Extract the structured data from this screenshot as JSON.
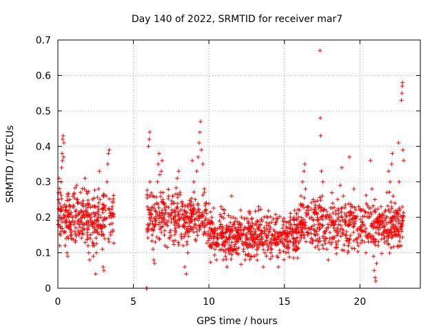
{
  "chart_data": {
    "type": "scatter",
    "title": "Day 140 of 2022, SRMTID for receiver mar7",
    "xlabel": "GPS time / hours",
    "ylabel": "SRMTID / TECUs",
    "xlim": [
      0,
      24
    ],
    "ylim": [
      0,
      0.7
    ],
    "xticks": [
      0,
      5,
      10,
      15,
      20
    ],
    "yticks": [
      0,
      0.1,
      0.2,
      0.3,
      0.4,
      0.5,
      0.6,
      0.7
    ],
    "ytick_labels": [
      "0",
      "0.1",
      "0.2",
      "0.3",
      "0.4",
      "0.5",
      "0.6",
      "0.7"
    ],
    "grid": true,
    "marker": "+",
    "color": "#ff0000",
    "series": [
      {
        "name": "mar7",
        "points": [
          [
            0.05,
            0.18
          ],
          [
            0.08,
            0.31
          ],
          [
            0.1,
            0.24
          ],
          [
            0.12,
            0.12
          ],
          [
            0.15,
            0.27
          ],
          [
            0.18,
            0.15
          ],
          [
            0.2,
            0.22
          ],
          [
            0.22,
            0.3
          ],
          [
            0.25,
            0.34
          ],
          [
            0.28,
            0.38
          ],
          [
            0.3,
            0.36
          ],
          [
            0.32,
            0.42
          ],
          [
            0.35,
            0.43
          ],
          [
            0.38,
            0.37
          ],
          [
            0.4,
            0.41
          ],
          [
            0.42,
            0.2
          ],
          [
            0.45,
            0.16
          ],
          [
            0.48,
            0.12
          ],
          [
            0.5,
            0.19
          ],
          [
            0.55,
            0.14
          ],
          [
            0.6,
            0.1
          ],
          [
            0.65,
            0.09
          ],
          [
            0.7,
            0.17
          ],
          [
            0.75,
            0.21
          ],
          [
            0.8,
            0.25
          ],
          [
            0.85,
            0.18
          ],
          [
            0.9,
            0.14
          ],
          [
            0.95,
            0.2
          ],
          [
            1.0,
            0.26
          ],
          [
            1.05,
            0.23
          ],
          [
            1.1,
            0.16
          ],
          [
            1.15,
            0.13
          ],
          [
            1.2,
            0.22
          ],
          [
            1.25,
            0.29
          ],
          [
            1.3,
            0.24
          ],
          [
            1.35,
            0.19
          ],
          [
            1.4,
            0.15
          ],
          [
            1.45,
            0.21
          ],
          [
            1.5,
            0.27
          ],
          [
            1.55,
            0.24
          ],
          [
            1.6,
            0.2
          ],
          [
            1.65,
            0.17
          ],
          [
            1.7,
            0.23
          ],
          [
            1.75,
            0.28
          ],
          [
            1.8,
            0.31
          ],
          [
            1.85,
            0.22
          ],
          [
            1.9,
            0.18
          ],
          [
            1.95,
            0.15
          ],
          [
            2.0,
            0.12
          ],
          [
            2.05,
            0.1
          ],
          [
            2.1,
            0.08
          ],
          [
            2.15,
            0.14
          ],
          [
            2.2,
            0.2
          ],
          [
            2.25,
            0.18
          ],
          [
            2.3,
            0.13
          ],
          [
            2.35,
            0.09
          ],
          [
            2.4,
            0.12
          ],
          [
            2.45,
            0.16
          ],
          [
            2.5,
            0.04
          ],
          [
            2.55,
            0.1
          ],
          [
            2.6,
            0.19
          ],
          [
            2.65,
            0.23
          ],
          [
            2.7,
            0.28
          ],
          [
            2.75,
            0.33
          ],
          [
            2.8,
            0.25
          ],
          [
            2.85,
            0.2
          ],
          [
            2.9,
            0.15
          ],
          [
            2.95,
            0.11
          ],
          [
            3.0,
            0.06
          ],
          [
            3.05,
            0.05
          ],
          [
            3.1,
            0.14
          ],
          [
            3.15,
            0.22
          ],
          [
            3.2,
            0.26
          ],
          [
            3.25,
            0.3
          ],
          [
            3.3,
            0.35
          ],
          [
            3.35,
            0.38
          ],
          [
            3.4,
            0.39
          ],
          [
            3.45,
            0.18
          ],
          [
            3.5,
            0.15
          ],
          [
            3.55,
            0.2
          ],
          [
            3.6,
            0.23
          ],
          [
            3.65,
            0.16
          ],
          [
            5.85,
            0.0
          ],
          [
            5.9,
            0.0
          ],
          [
            5.95,
            0.18
          ],
          [
            6.0,
            0.4
          ],
          [
            6.05,
            0.42
          ],
          [
            6.08,
            0.44
          ],
          [
            6.1,
            0.3
          ],
          [
            6.15,
            0.26
          ],
          [
            6.2,
            0.2
          ],
          [
            6.25,
            0.15
          ],
          [
            6.3,
            0.11
          ],
          [
            6.35,
            0.08
          ],
          [
            6.4,
            0.07
          ],
          [
            6.45,
            0.13
          ],
          [
            6.5,
            0.19
          ],
          [
            6.55,
            0.24
          ],
          [
            6.6,
            0.3
          ],
          [
            6.65,
            0.35
          ],
          [
            6.7,
            0.38
          ],
          [
            6.75,
            0.32
          ],
          [
            6.8,
            0.27
          ],
          [
            6.85,
            0.33
          ],
          [
            6.9,
            0.36
          ],
          [
            6.95,
            0.25
          ],
          [
            7.0,
            0.2
          ],
          [
            7.05,
            0.15
          ],
          [
            7.1,
            0.12
          ],
          [
            7.15,
            0.18
          ],
          [
            7.2,
            0.23
          ],
          [
            7.3,
            0.19
          ],
          [
            7.4,
            0.14
          ],
          [
            7.5,
            0.21
          ],
          [
            7.6,
            0.26
          ],
          [
            7.7,
            0.22
          ],
          [
            7.8,
            0.17
          ],
          [
            7.9,
            0.31
          ],
          [
            8.0,
            0.33
          ],
          [
            8.1,
            0.27
          ],
          [
            8.2,
            0.2
          ],
          [
            8.3,
            0.12
          ],
          [
            8.4,
            0.06
          ],
          [
            8.5,
            0.04
          ],
          [
            8.6,
            0.1
          ],
          [
            8.7,
            0.16
          ],
          [
            8.8,
            0.22
          ],
          [
            8.9,
            0.36
          ],
          [
            9.0,
            0.3
          ],
          [
            9.1,
            0.25
          ],
          [
            9.2,
            0.33
          ],
          [
            9.3,
            0.37
          ],
          [
            9.35,
            0.41
          ],
          [
            9.4,
            0.44
          ],
          [
            9.45,
            0.47
          ],
          [
            9.5,
            0.39
          ],
          [
            9.6,
            0.35
          ],
          [
            9.7,
            0.28
          ],
          [
            9.8,
            0.22
          ],
          [
            9.9,
            0.18
          ],
          [
            10.0,
            0.15
          ],
          [
            10.1,
            0.12
          ],
          [
            10.2,
            0.2
          ],
          [
            10.3,
            0.16
          ],
          [
            10.4,
            0.11
          ],
          [
            10.5,
            0.08
          ],
          [
            10.6,
            0.14
          ],
          [
            10.7,
            0.19
          ],
          [
            10.8,
            0.23
          ],
          [
            10.9,
            0.17
          ],
          [
            11.0,
            0.12
          ],
          [
            11.1,
            0.09
          ],
          [
            11.2,
            0.06
          ],
          [
            11.3,
            0.11
          ],
          [
            11.4,
            0.16
          ],
          [
            11.5,
            0.26
          ],
          [
            11.6,
            0.2
          ],
          [
            11.7,
            0.14
          ],
          [
            11.8,
            0.1
          ],
          [
            11.9,
            0.13
          ],
          [
            12.0,
            0.18
          ],
          [
            12.1,
            0.22
          ],
          [
            12.2,
            0.15
          ],
          [
            12.3,
            0.11
          ],
          [
            12.4,
            0.08
          ],
          [
            12.5,
            0.12
          ],
          [
            12.6,
            0.17
          ],
          [
            12.7,
            0.21
          ],
          [
            12.8,
            0.16
          ],
          [
            12.9,
            0.12
          ],
          [
            13.0,
            0.09
          ],
          [
            13.1,
            0.14
          ],
          [
            13.2,
            0.19
          ],
          [
            13.3,
            0.23
          ],
          [
            13.4,
            0.18
          ],
          [
            13.5,
            0.13
          ],
          [
            13.6,
            0.06
          ],
          [
            13.7,
            0.1
          ],
          [
            13.8,
            0.15
          ],
          [
            13.9,
            0.2
          ],
          [
            14.0,
            0.16
          ],
          [
            14.1,
            0.12
          ],
          [
            14.2,
            0.09
          ],
          [
            14.3,
            0.14
          ],
          [
            14.4,
            0.18
          ],
          [
            14.5,
            0.13
          ],
          [
            14.6,
            0.06
          ],
          [
            14.7,
            0.1
          ],
          [
            14.8,
            0.15
          ],
          [
            14.9,
            0.19
          ],
          [
            15.0,
            0.14
          ],
          [
            15.1,
            0.1
          ],
          [
            15.2,
            0.13
          ],
          [
            15.3,
            0.17
          ],
          [
            15.4,
            0.2
          ],
          [
            15.5,
            0.15
          ],
          [
            15.6,
            0.12
          ],
          [
            15.7,
            0.16
          ],
          [
            15.8,
            0.21
          ],
          [
            15.9,
            0.18
          ],
          [
            16.0,
            0.22
          ],
          [
            16.1,
            0.26
          ],
          [
            16.2,
            0.3
          ],
          [
            16.3,
            0.33
          ],
          [
            16.35,
            0.35
          ],
          [
            16.4,
            0.28
          ],
          [
            16.5,
            0.22
          ],
          [
            16.6,
            0.17
          ],
          [
            16.7,
            0.13
          ],
          [
            16.8,
            0.2
          ],
          [
            16.9,
            0.25
          ],
          [
            17.0,
            0.21
          ],
          [
            17.1,
            0.16
          ],
          [
            17.2,
            0.12
          ],
          [
            17.25,
            0.18
          ],
          [
            17.3,
            0.23
          ],
          [
            17.35,
            0.67
          ],
          [
            17.38,
            0.48
          ],
          [
            17.4,
            0.43
          ],
          [
            17.45,
            0.33
          ],
          [
            17.5,
            0.26
          ],
          [
            17.55,
            0.3
          ],
          [
            17.6,
            0.22
          ],
          [
            17.7,
            0.16
          ],
          [
            17.8,
            0.11
          ],
          [
            17.9,
            0.08
          ],
          [
            18.0,
            0.14
          ],
          [
            18.1,
            0.2
          ],
          [
            18.2,
            0.24
          ],
          [
            18.3,
            0.18
          ],
          [
            18.4,
            0.13
          ],
          [
            18.5,
            0.17
          ],
          [
            18.6,
            0.22
          ],
          [
            18.7,
            0.29
          ],
          [
            18.8,
            0.34
          ],
          [
            18.9,
            0.26
          ],
          [
            19.0,
            0.21
          ],
          [
            19.1,
            0.15
          ],
          [
            19.2,
            0.1
          ],
          [
            19.3,
            0.37
          ],
          [
            19.4,
            0.18
          ],
          [
            19.5,
            0.23
          ],
          [
            19.6,
            0.28
          ],
          [
            19.7,
            0.2
          ],
          [
            19.8,
            0.14
          ],
          [
            19.9,
            0.12
          ],
          [
            20.0,
            0.17
          ],
          [
            20.1,
            0.22
          ],
          [
            20.2,
            0.18
          ],
          [
            20.3,
            0.13
          ],
          [
            20.4,
            0.1
          ],
          [
            20.5,
            0.15
          ],
          [
            20.6,
            0.2
          ],
          [
            20.7,
            0.36
          ],
          [
            20.8,
            0.28
          ],
          [
            20.9,
            0.09
          ],
          [
            20.95,
            0.05
          ],
          [
            21.0,
            0.03
          ],
          [
            21.05,
            0.02
          ],
          [
            21.1,
            0.07
          ],
          [
            21.2,
            0.12
          ],
          [
            21.3,
            0.18
          ],
          [
            21.4,
            0.23
          ],
          [
            21.5,
            0.19
          ],
          [
            21.6,
            0.14
          ],
          [
            21.7,
            0.22
          ],
          [
            21.8,
            0.27
          ],
          [
            21.9,
            0.33
          ],
          [
            22.0,
            0.3
          ],
          [
            22.1,
            0.35
          ],
          [
            22.15,
            0.38
          ],
          [
            22.2,
            0.26
          ],
          [
            22.3,
            0.2
          ],
          [
            22.4,
            0.16
          ],
          [
            22.5,
            0.12
          ],
          [
            22.55,
            0.41
          ],
          [
            22.6,
            0.3
          ],
          [
            22.65,
            0.22
          ],
          [
            22.7,
            0.17
          ],
          [
            22.75,
            0.53
          ],
          [
            22.78,
            0.55
          ],
          [
            22.8,
            0.57
          ],
          [
            22.82,
            0.58
          ],
          [
            22.85,
            0.39
          ],
          [
            22.9,
            0.36
          ]
        ]
      }
    ],
    "generated_density": {
      "seed": 140,
      "segments": [
        {
          "x": [
            0.0,
            3.7
          ],
          "y": [
            0.1,
            0.3
          ],
          "count": 260
        },
        {
          "x": [
            5.9,
            10.0
          ],
          "y": [
            0.1,
            0.3
          ],
          "count": 300
        },
        {
          "x": [
            10.0,
            16.0
          ],
          "y": [
            0.06,
            0.24
          ],
          "count": 500
        },
        {
          "x": [
            16.0,
            22.9
          ],
          "y": [
            0.08,
            0.28
          ],
          "count": 500
        }
      ]
    }
  }
}
